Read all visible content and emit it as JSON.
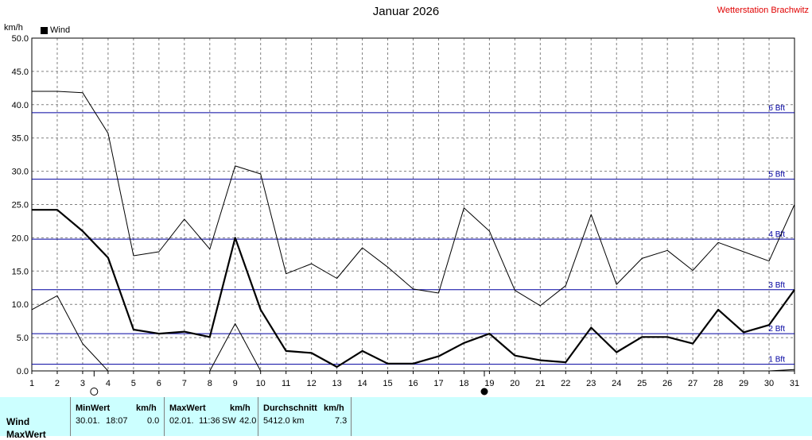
{
  "header": {
    "title": "Januar 2026",
    "station": "Wetterstation Brachwitz",
    "unit": "km/h",
    "legend_label": "Wind"
  },
  "colors": {
    "background": "#ffffff",
    "grid": "#808080",
    "beaufort_lines": "#0000a0",
    "series": "#000000",
    "station_title": "#e00000",
    "stats_background": "#ccffff"
  },
  "chart_data": {
    "type": "line",
    "title": "Januar 2026",
    "xlabel": "",
    "ylabel": "km/h",
    "ylim": [
      0,
      50
    ],
    "yticks": [
      "0.0",
      "5.0",
      "10.0",
      "15.0",
      "20.0",
      "25.0",
      "30.0",
      "35.0",
      "40.0",
      "45.0",
      "50.0"
    ],
    "x": [
      1,
      2,
      3,
      4,
      5,
      6,
      7,
      8,
      9,
      10,
      11,
      12,
      13,
      14,
      15,
      16,
      17,
      18,
      19,
      20,
      21,
      22,
      23,
      24,
      25,
      26,
      27,
      28,
      29,
      30,
      31
    ],
    "grid": true,
    "legend": [
      "Wind"
    ],
    "legend_position": "top-left",
    "series": [
      {
        "name": "Wind (Durchschnitt)",
        "style": "thick",
        "values": [
          24.2,
          24.2,
          21.0,
          17.0,
          6.2,
          5.6,
          5.9,
          5.1,
          20.0,
          9.2,
          3.0,
          2.7,
          0.6,
          3.0,
          1.1,
          1.1,
          2.2,
          4.2,
          5.6,
          2.3,
          1.6,
          1.3,
          6.5,
          2.8,
          5.1,
          5.1,
          4.1,
          9.2,
          5.8,
          6.9,
          12.2
        ]
      },
      {
        "name": "Wind (Max)",
        "style": "thin",
        "values": [
          42.0,
          42.0,
          41.8,
          35.7,
          17.3,
          17.9,
          22.8,
          18.3,
          30.8,
          29.6,
          14.6,
          16.1,
          13.9,
          18.5,
          15.6,
          12.3,
          11.7,
          24.5,
          21.0,
          12.1,
          9.8,
          12.8,
          23.5,
          13.0,
          16.9,
          18.1,
          15.1,
          19.3,
          17.9,
          16.5,
          25.0
        ]
      },
      {
        "name": "Wind (Min)",
        "style": "thin",
        "values": [
          9.2,
          11.3,
          4.1,
          0.0,
          null,
          null,
          null,
          0.0,
          7.1,
          0.0,
          null,
          null,
          null,
          null,
          null,
          null,
          null,
          null,
          null,
          null,
          null,
          null,
          null,
          null,
          null,
          null,
          null,
          null,
          null,
          0.0,
          0.2
        ]
      }
    ],
    "reference_lines": [
      {
        "label": "1 Bft",
        "value": 1.0
      },
      {
        "label": "2 Bft",
        "value": 5.6
      },
      {
        "label": "3 Bft",
        "value": 12.2
      },
      {
        "label": "4 Bft",
        "value": 19.8
      },
      {
        "label": "5 Bft",
        "value": 28.8
      },
      {
        "label": "6 Bft",
        "value": 38.8
      }
    ],
    "moon_phases": [
      {
        "day": 3.45,
        "phase": "full-moon"
      },
      {
        "day": 18.8,
        "phase": "new-moon"
      }
    ]
  },
  "stats": {
    "row_labels": [
      "Wind",
      "MaxWert"
    ],
    "columns": [
      {
        "header": "MinWert",
        "unit": "km/h",
        "date": "30.01.",
        "time": "18:07",
        "value": "0.0"
      },
      {
        "header": "MaxWert",
        "unit": "km/h",
        "date": "02.01.",
        "time": "11:36",
        "extra": "SW",
        "value": "42.0"
      },
      {
        "header": "Durchschnitt",
        "unit": "km/h",
        "date": "5412.0 km",
        "value": "7.3"
      }
    ]
  }
}
